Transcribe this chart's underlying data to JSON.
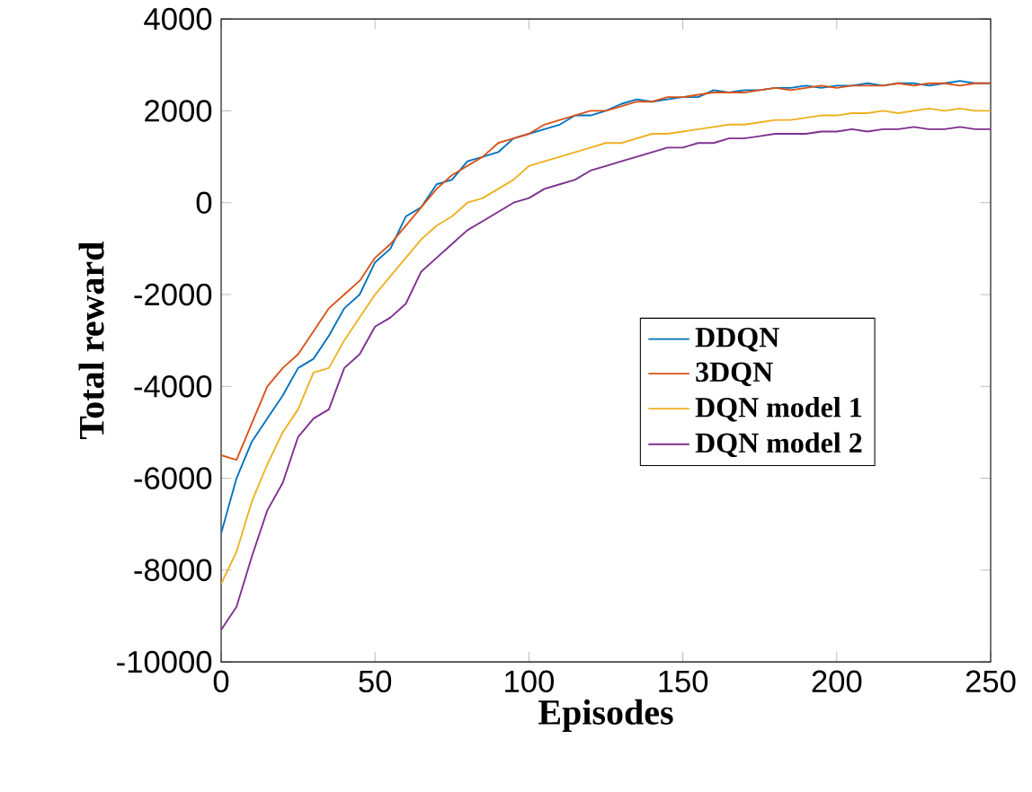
{
  "chart_data": {
    "type": "line",
    "xlabel": "Episodes",
    "ylabel": "Total reward",
    "x": [
      0,
      5,
      10,
      15,
      20,
      25,
      30,
      35,
      40,
      45,
      50,
      55,
      60,
      65,
      70,
      75,
      80,
      85,
      90,
      95,
      100,
      105,
      110,
      115,
      120,
      125,
      130,
      135,
      140,
      145,
      150,
      155,
      160,
      165,
      170,
      175,
      180,
      185,
      190,
      195,
      200,
      205,
      210,
      215,
      220,
      225,
      230,
      235,
      240,
      245,
      250
    ],
    "xlim": [
      0,
      250
    ],
    "xticks": [
      0,
      50,
      100,
      150,
      200,
      250
    ],
    "ylim": [
      -10000,
      4000
    ],
    "yticks": [
      -10000,
      -8000,
      -6000,
      -4000,
      -2000,
      0,
      2000,
      4000
    ],
    "grid": false,
    "legend": "center right",
    "marker": "none",
    "line_style": "solid",
    "series": [
      {
        "name": "DDQN",
        "color": "#0072bd",
        "values": [
          -7200,
          -6000,
          -5200,
          -4700,
          -4200,
          -3600,
          -3400,
          -2900,
          -2300,
          -2000,
          -1300,
          -1000,
          -300,
          -100,
          400,
          500,
          900,
          1000,
          1100,
          1400,
          1500,
          1600,
          1700,
          1900,
          1900,
          2000,
          2150,
          2250,
          2200,
          2250,
          2300,
          2300,
          2450,
          2400,
          2450,
          2450,
          2500,
          2500,
          2550,
          2500,
          2550,
          2550,
          2600,
          2550,
          2600,
          2600,
          2550,
          2600,
          2650,
          2600,
          2600
        ]
      },
      {
        "name": "3DQN",
        "color": "#d95319",
        "values": [
          -5500,
          -5600,
          -4800,
          -4000,
          -3600,
          -3300,
          -2800,
          -2300,
          -2000,
          -1700,
          -1200,
          -900,
          -500,
          -100,
          300,
          600,
          800,
          1000,
          1300,
          1400,
          1500,
          1700,
          1800,
          1900,
          2000,
          2000,
          2100,
          2200,
          2200,
          2300,
          2300,
          2350,
          2400,
          2400,
          2400,
          2450,
          2500,
          2450,
          2500,
          2550,
          2500,
          2550,
          2550,
          2550,
          2600,
          2550,
          2600,
          2600,
          2550,
          2600,
          2600
        ]
      },
      {
        "name": "DQN model 1",
        "color": "#edb120",
        "values": [
          -8300,
          -7600,
          -6500,
          -5700,
          -5000,
          -4500,
          -3700,
          -3600,
          -3000,
          -2500,
          -2000,
          -1600,
          -1200,
          -800,
          -500,
          -300,
          0,
          100,
          300,
          500,
          800,
          900,
          1000,
          1100,
          1200,
          1300,
          1300,
          1400,
          1500,
          1500,
          1550,
          1600,
          1650,
          1700,
          1700,
          1750,
          1800,
          1800,
          1850,
          1900,
          1900,
          1950,
          1950,
          2000,
          1950,
          2000,
          2050,
          2000,
          2050,
          2000,
          2000
        ]
      },
      {
        "name": "DQN model 2",
        "color": "#7e2f8e",
        "values": [
          -9300,
          -8800,
          -7700,
          -6700,
          -6100,
          -5100,
          -4700,
          -4500,
          -3600,
          -3300,
          -2700,
          -2500,
          -2200,
          -1500,
          -1200,
          -900,
          -600,
          -400,
          -200,
          0,
          100,
          300,
          400,
          500,
          700,
          800,
          900,
          1000,
          1100,
          1200,
          1200,
          1300,
          1300,
          1400,
          1400,
          1450,
          1500,
          1500,
          1500,
          1550,
          1550,
          1600,
          1550,
          1600,
          1600,
          1650,
          1600,
          1600,
          1650,
          1600,
          1600
        ]
      }
    ]
  }
}
